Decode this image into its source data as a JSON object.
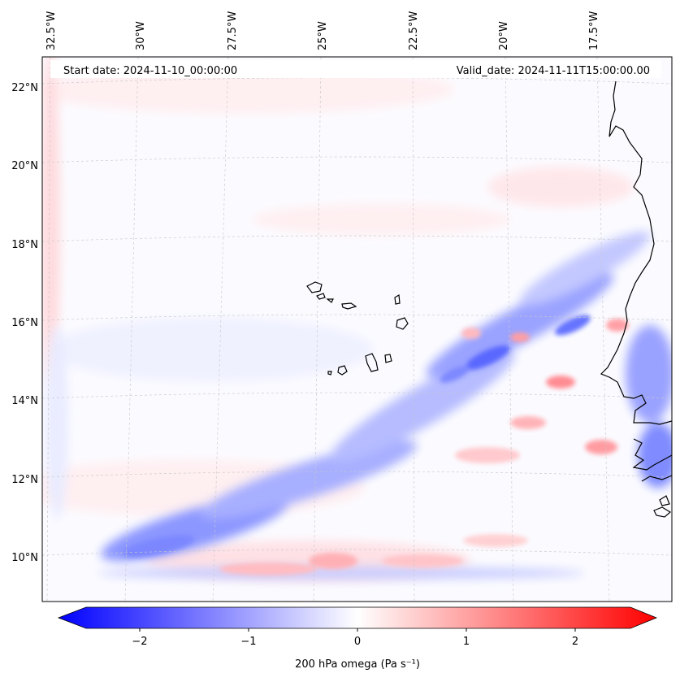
{
  "map": {
    "start_label": "Start date: 2024-11-10_00:00:00",
    "valid_label": "Valid_date: 2024-11-11T15:00:00.00",
    "lon_labels": [
      "32.5°W",
      "30°W",
      "27.5°W",
      "25°W",
      "22.5°W",
      "20°W",
      "17.5°W"
    ],
    "lat_labels": [
      "22°N",
      "20°N",
      "18°N",
      "16°N",
      "14°N",
      "12°N",
      "10°N"
    ],
    "field": "200 hPa omega",
    "extent": {
      "lon_min": -32.8,
      "lon_max": -15.5,
      "lat_min": 9.0,
      "lat_max": 22.8
    }
  },
  "colorbar": {
    "label": "200 hPa omega (Pa s⁻¹)",
    "ticks": [
      "−2",
      "−1",
      "0",
      "1",
      "2"
    ],
    "tick_values": [
      -2,
      -1,
      0,
      1,
      2
    ],
    "range": [
      -2.5,
      2.5
    ],
    "cmap": "bwr",
    "extend": "both"
  },
  "colors": {
    "negative": "#0000ff",
    "neutral": "#ffffff",
    "positive": "#ff0000",
    "coast": "#000000",
    "grid": "#c8c8c8"
  }
}
